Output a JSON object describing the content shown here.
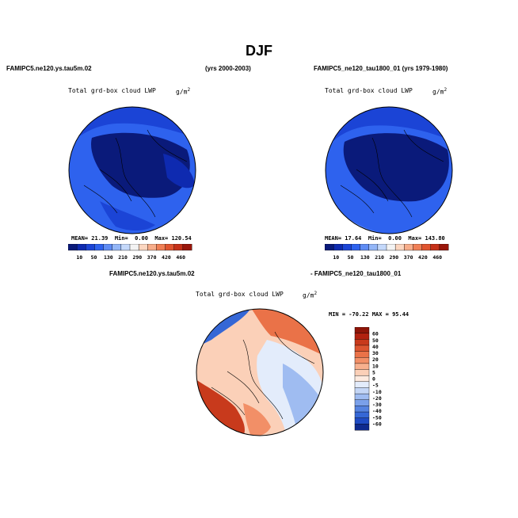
{
  "page": {
    "title": "DJF"
  },
  "panels": [
    {
      "case_name": "FAMIPC5.ne120.ys.tau5m.02",
      "years": "(yrs 2000-2003)",
      "field_title": "Total grd-box cloud LWP",
      "units_base": "g/m",
      "units_exp": "2",
      "stats": {
        "mean_label": "MEAN=",
        "mean": "21.39",
        "min_label": "Min=",
        "min": "0.00",
        "max_label": "Max=",
        "max": "120.54"
      }
    },
    {
      "case_name": "FAMIPC5_ne120_tau1800_01",
      "years": "(yrs 1979-1980)",
      "field_title": "Total grd-box cloud LWP",
      "units_base": "g/m",
      "units_exp": "2",
      "stats": {
        "mean_label": "MEAN=",
        "mean": "17.64",
        "min_label": "Min=",
        "min": "0.00",
        "max_label": "Max=",
        "max": "143.80"
      }
    }
  ],
  "diff_panel": {
    "left_title": "FAMIPC5.ne120.ys.tau5m.02",
    "right_title": "- FAMIPC5_ne120_tau1800_01",
    "field_title": "Total grd-box cloud LWP",
    "units_base": "g/m",
    "units_exp": "2",
    "minmax_text": "MIN = -70.22 MAX =  95.44"
  },
  "chart_data": [
    {
      "type": "heatmap",
      "projection": "north-polar-stereographic",
      "colorbar": {
        "orientation": "horizontal",
        "tick_labels": [
          "10",
          "50",
          "130",
          "210",
          "290",
          "370",
          "420",
          "460"
        ],
        "colors": [
          "#0a1a7a",
          "#0e2ab0",
          "#1b44d6",
          "#2e62ee",
          "#5f8cf4",
          "#93b6f7",
          "#c4d8fa",
          "#f3f3f3",
          "#fbd6c0",
          "#f7ad8a",
          "#f07f55",
          "#e0542f",
          "#c53018",
          "#9a160b"
        ]
      }
    },
    {
      "type": "heatmap",
      "projection": "north-polar-stereographic",
      "colorbar": {
        "orientation": "horizontal",
        "tick_labels": [
          "10",
          "50",
          "130",
          "210",
          "290",
          "370",
          "420",
          "460"
        ],
        "colors": [
          "#0a1a7a",
          "#0e2ab0",
          "#1b44d6",
          "#2e62ee",
          "#5f8cf4",
          "#93b6f7",
          "#c4d8fa",
          "#f3f3f3",
          "#fbd6c0",
          "#f7ad8a",
          "#f07f55",
          "#e0542f",
          "#c53018",
          "#9a160b"
        ]
      }
    },
    {
      "type": "heatmap",
      "projection": "north-polar-stereographic",
      "colorbar": {
        "orientation": "vertical",
        "tick_labels": [
          "60",
          "50",
          "40",
          "30",
          "20",
          "10",
          "5",
          "0",
          "-5",
          "-10",
          "-20",
          "-30",
          "-40",
          "-50",
          "-60"
        ],
        "colors": [
          "#8e1508",
          "#b1210f",
          "#c83a1c",
          "#dc5530",
          "#ea7248",
          "#f28f67",
          "#f7b08e",
          "#fbd0b8",
          "#fdeadf",
          "#e3ecfb",
          "#c4d6f6",
          "#9fbcf1",
          "#7aa0ea",
          "#5583e0",
          "#3567d6",
          "#1f4bc4",
          "#0f2a8e"
        ]
      }
    }
  ]
}
